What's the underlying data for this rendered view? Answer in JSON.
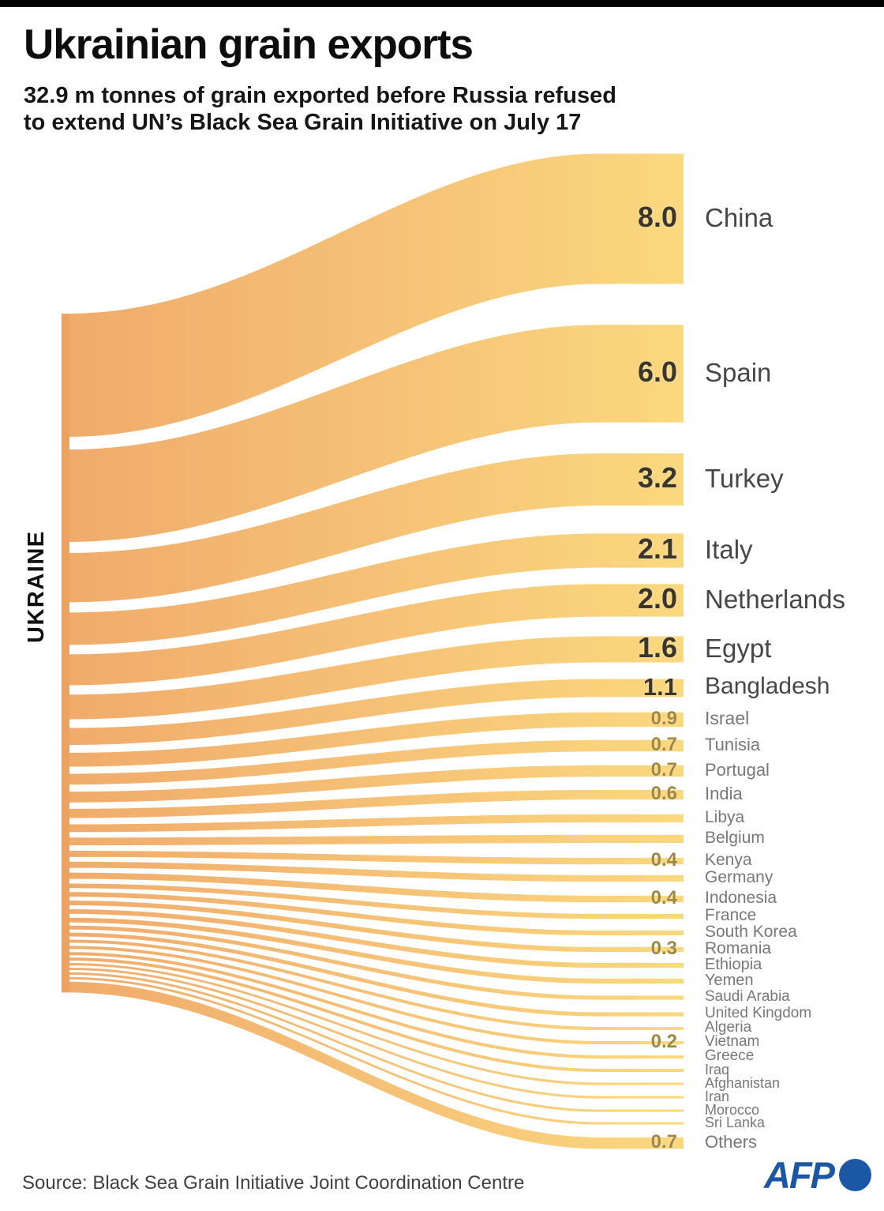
{
  "header": {
    "title": "Ukrainian grain exports",
    "subtitle_line1": "32.9 m tonnes of grain exported before Russia refused",
    "subtitle_line2": "to extend UN’s Black Sea Grain Initiative on July 17"
  },
  "footer": {
    "source": "Source: Black Sea Grain Initiative Joint Coordination Centre",
    "logo_text": "AFP"
  },
  "chart_data": {
    "type": "sankey",
    "title": "Ukrainian grain exports",
    "origin_label": "UKRAINE",
    "total": "32.9 m tonnes",
    "unit": "million tonnes",
    "flows": [
      {
        "country": "China",
        "value": 8.0,
        "label": "8.0"
      },
      {
        "country": "Spain",
        "value": 6.0,
        "label": "6.0"
      },
      {
        "country": "Turkey",
        "value": 3.2,
        "label": "3.2"
      },
      {
        "country": "Italy",
        "value": 2.1,
        "label": "2.1"
      },
      {
        "country": "Netherlands",
        "value": 2.0,
        "label": "2.0"
      },
      {
        "country": "Egypt",
        "value": 1.6,
        "label": "1.6"
      },
      {
        "country": "Bangladesh",
        "value": 1.1,
        "label": "1.1"
      },
      {
        "country": "Israel",
        "value": 0.9,
        "label": "0.9"
      },
      {
        "country": "Tunisia",
        "value": 0.7,
        "label": "0.7"
      },
      {
        "country": "Portugal",
        "value": 0.7,
        "label": "0.7"
      },
      {
        "country": "India",
        "value": 0.6,
        "label": "0.6"
      },
      {
        "country": "Libya",
        "value": 0.5,
        "label": ""
      },
      {
        "country": "Belgium",
        "value": 0.5,
        "label": ""
      },
      {
        "country": "Kenya",
        "value": 0.4,
        "label": "0.4"
      },
      {
        "country": "Germany",
        "value": 0.4,
        "label": ""
      },
      {
        "country": "Indonesia",
        "value": 0.4,
        "label": "0.4"
      },
      {
        "country": "France",
        "value": 0.3,
        "label": ""
      },
      {
        "country": "South Korea",
        "value": 0.3,
        "label": ""
      },
      {
        "country": "Romania",
        "value": 0.3,
        "label": "0.3"
      },
      {
        "country": "Ethiopia",
        "value": 0.3,
        "label": ""
      },
      {
        "country": "Yemen",
        "value": 0.3,
        "label": ""
      },
      {
        "country": "Saudi Arabia",
        "value": 0.25,
        "label": ""
      },
      {
        "country": "United Kingdom",
        "value": 0.25,
        "label": ""
      },
      {
        "country": "Algeria",
        "value": 0.2,
        "label": ""
      },
      {
        "country": "Vietnam",
        "value": 0.2,
        "label": "0.2"
      },
      {
        "country": "Greece",
        "value": 0.2,
        "label": ""
      },
      {
        "country": "Iraq",
        "value": 0.2,
        "label": ""
      },
      {
        "country": "Afghanistan",
        "value": 0.15,
        "label": ""
      },
      {
        "country": "Iran",
        "value": 0.15,
        "label": ""
      },
      {
        "country": "Morocco",
        "value": 0.15,
        "label": ""
      },
      {
        "country": "Sri Lanka",
        "value": 0.15,
        "label": ""
      },
      {
        "country": "Others",
        "value": 0.7,
        "label": "0.7"
      }
    ],
    "colors": {
      "flow_left": "#f0ab6b",
      "flow_mid": "#f6c377",
      "flow_right": "#fbd87e",
      "node_left": "#eca261",
      "value_large": "#3b362c",
      "value_small": "#a08743",
      "label_large": "#474747",
      "label_small": "#787878",
      "logo_blue": "#1b57a5",
      "topbar": "#000000"
    }
  }
}
